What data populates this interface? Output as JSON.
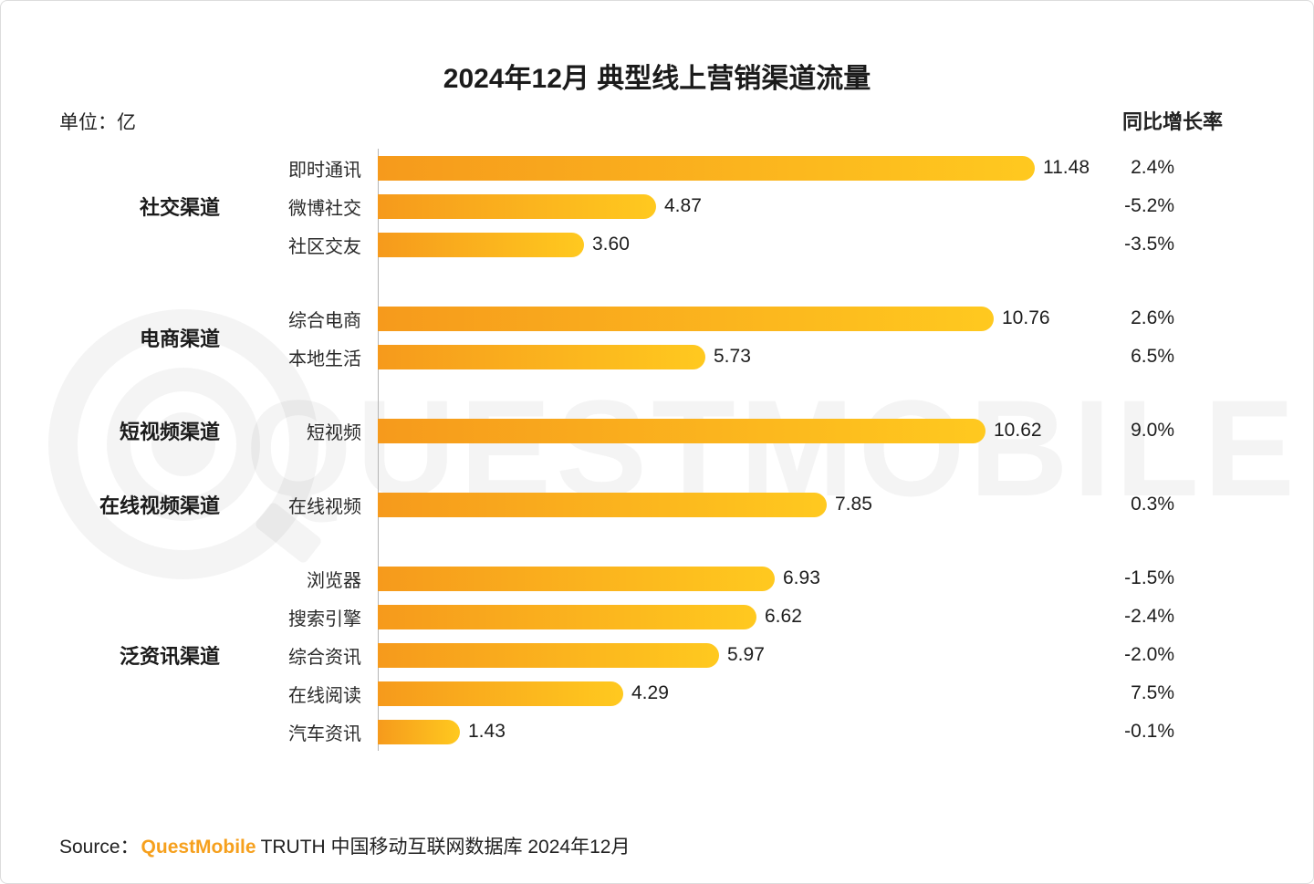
{
  "page": {
    "title": "2024年12月 典型线上营销渠道流量",
    "unit_label": "单位：亿",
    "growth_header": "同比增长率",
    "watermark_text": "QUESTMOBILE",
    "source_prefix": "Source：",
    "source_brand": "QuestMobile",
    "source_suffix": "TRUTH 中国移动互联网数据库 2024年12月"
  },
  "colors": {
    "bar_gradient_start": "#F69A1C",
    "bar_gradient_end": "#FFC91F",
    "brand_orange": "#F6A01D",
    "watermark": "rgba(0,0,0,0.045)"
  },
  "chart_data": {
    "type": "bar",
    "orientation": "horizontal",
    "title": "2024年12月 典型线上营销渠道流量",
    "unit": "亿",
    "value_column_note": "流量（单位：亿）",
    "growth_column_header": "同比增长率",
    "xlim": [
      0,
      11.48
    ],
    "grid": "off",
    "legend": "none",
    "groups": [
      {
        "label": "社交渠道",
        "rows": [
          {
            "label": "即时通讯",
            "value": 11.48,
            "value_label": "11.48",
            "growth": "2.4%"
          },
          {
            "label": "微博社交",
            "value": 4.87,
            "value_label": "4.87",
            "growth": "-5.2%"
          },
          {
            "label": "社区交友",
            "value": 3.6,
            "value_label": "3.60",
            "growth": "-3.5%"
          }
        ]
      },
      {
        "label": "电商渠道",
        "rows": [
          {
            "label": "综合电商",
            "value": 10.76,
            "value_label": "10.76",
            "growth": "2.6%"
          },
          {
            "label": "本地生活",
            "value": 5.73,
            "value_label": "5.73",
            "growth": "6.5%"
          }
        ]
      },
      {
        "label": "短视频渠道",
        "rows": [
          {
            "label": "短视频",
            "value": 10.62,
            "value_label": "10.62",
            "growth": "9.0%"
          }
        ]
      },
      {
        "label": "在线视频渠道",
        "rows": [
          {
            "label": "在线视频",
            "value": 7.85,
            "value_label": "7.85",
            "growth": "0.3%"
          }
        ]
      },
      {
        "label": "泛资讯渠道",
        "rows": [
          {
            "label": "浏览器",
            "value": 6.93,
            "value_label": "6.93",
            "growth": "-1.5%"
          },
          {
            "label": "搜索引擎",
            "value": 6.62,
            "value_label": "6.62",
            "growth": "-2.4%"
          },
          {
            "label": "综合资讯",
            "value": 5.97,
            "value_label": "5.97",
            "growth": "-2.0%"
          },
          {
            "label": "在线阅读",
            "value": 4.29,
            "value_label": "4.29",
            "growth": "7.5%"
          },
          {
            "label": "汽车资讯",
            "value": 1.43,
            "value_label": "1.43",
            "growth": "-0.1%"
          }
        ]
      }
    ]
  }
}
